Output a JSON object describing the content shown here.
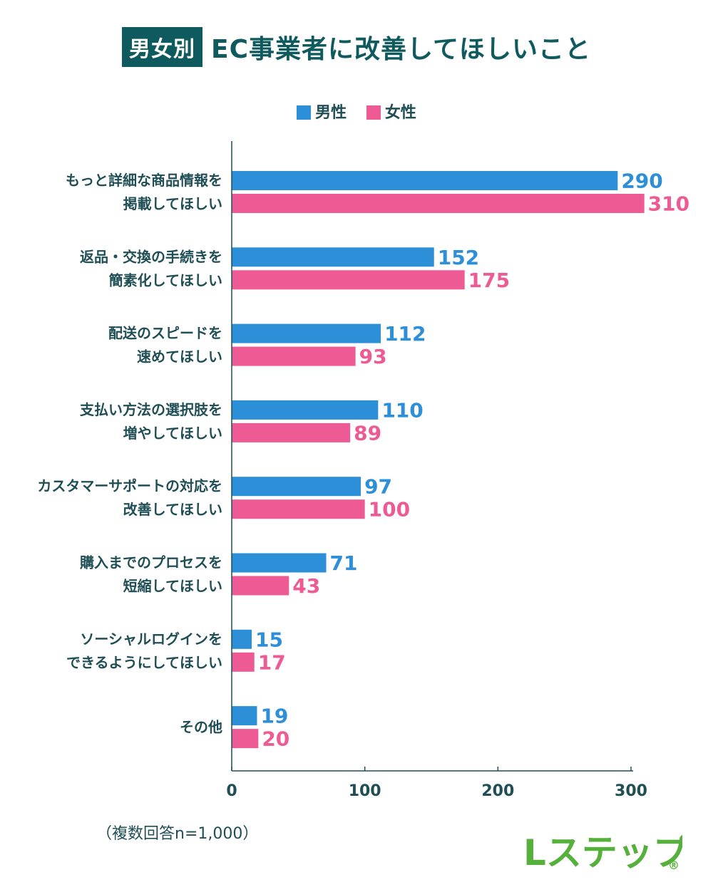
{
  "title": {
    "badge": "男女別",
    "text": "EC事業者に改善してほしいこと"
  },
  "legend": [
    {
      "name": "男性",
      "color": "#2e8fd9"
    },
    {
      "name": "女性",
      "color": "#ee5a93"
    }
  ],
  "chart_data": {
    "type": "bar",
    "orientation": "horizontal",
    "categories": [
      [
        "もっと詳細な商品情報を",
        "掲載してほしい"
      ],
      [
        "返品・交換の手続きを",
        "簡素化してほしい"
      ],
      [
        "配送のスピードを",
        "速めてほしい"
      ],
      [
        "支払い方法の選択肢を",
        "増やしてほしい"
      ],
      [
        "カスタマーサポートの対応を",
        "改善してほしい"
      ],
      [
        "購入までのプロセスを",
        "短縮してほしい"
      ],
      [
        "ソーシャルログインを",
        "できるようにしてほしい"
      ],
      [
        "その他"
      ]
    ],
    "series": [
      {
        "name": "男性",
        "color": "#2e8fd9",
        "values": [
          290,
          152,
          112,
          110,
          97,
          71,
          15,
          19
        ]
      },
      {
        "name": "女性",
        "color": "#ee5a93",
        "values": [
          310,
          175,
          93,
          89,
          100,
          43,
          17,
          20
        ]
      }
    ],
    "xlim": [
      0,
      300
    ],
    "xticks": [
      0,
      100,
      200,
      300
    ],
    "grid": false,
    "legend_position": "top-center"
  },
  "note": "（複数回答n=1,000）",
  "logo": {
    "text": "Lステップ",
    "mark": "®",
    "color": "#55b13c"
  }
}
